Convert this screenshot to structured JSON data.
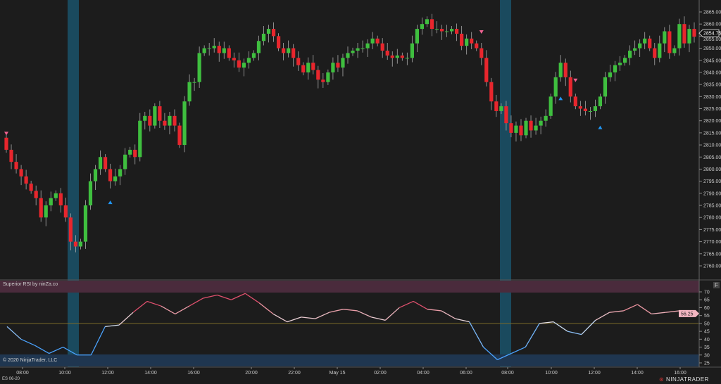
{
  "instrument": "ES 06-20",
  "indicator_label": "Superior RSI by ninZa.co",
  "copyright": "© 2020 NinjaTrader, LLC",
  "logo": "NINJATRADER",
  "panel_button": "F",
  "colors": {
    "background": "#1c1c1c",
    "up": "#3fbf3f",
    "down": "#e8262d",
    "highlight": "#1a4a5e",
    "overbought": "#4a2b3c",
    "oversold": "#1f3650",
    "midline": "#7a6a2a",
    "arrow_up": "#2196f3",
    "arrow_down": "#f06292"
  },
  "chart_data": [
    {
      "type": "candlestick",
      "ylim": [
        2757,
        2868
      ],
      "y_ticks": [
        2865,
        2860,
        2855,
        2850,
        2845,
        2840,
        2835,
        2830,
        2825,
        2820,
        2815,
        2810,
        2805,
        2800,
        2795,
        2790,
        2785,
        2780,
        2775,
        2770,
        2765,
        2760
      ],
      "last_price": "2854.75",
      "x_ticks": [
        "08:00",
        "10:00",
        "12:00",
        "14:00",
        "16:00",
        "20:00",
        "22:00",
        "May 15",
        "02:00",
        "04:00",
        "06:00",
        "08:00",
        "10:00",
        "12:00",
        "14:00",
        "16:00"
      ],
      "closes": [
        2808,
        2803,
        2800,
        2797,
        2794,
        2791,
        2788,
        2780,
        2785,
        2788,
        2790,
        2785,
        2780,
        2770,
        2768,
        2770,
        2785,
        2795,
        2800,
        2805,
        2800,
        2795,
        2797,
        2800,
        2806,
        2808,
        2805,
        2820,
        2822,
        2818,
        2826,
        2820,
        2818,
        2822,
        2818,
        2810,
        2828,
        2836,
        2836,
        2848,
        2850,
        2850,
        2851,
        2848,
        2850,
        2846,
        2845,
        2842,
        2844,
        2846,
        2848,
        2853,
        2856,
        2858,
        2855,
        2850,
        2848,
        2850,
        2846,
        2843,
        2840,
        2844,
        2841,
        2837,
        2836,
        2840,
        2844,
        2842,
        2846,
        2848,
        2849,
        2850,
        2850,
        2852,
        2854,
        2852,
        2849,
        2847,
        2846,
        2847,
        2846,
        2846,
        2852,
        2858,
        2860,
        2862,
        2858,
        2858,
        2857,
        2857,
        2858,
        2856,
        2851,
        2854,
        2852,
        2850,
        2846,
        2836,
        2828,
        2824,
        2826,
        2819,
        2815,
        2818,
        2814,
        2820,
        2816,
        2818,
        2820,
        2822,
        2830,
        2838,
        2844,
        2838,
        2830,
        2826,
        2825,
        2824,
        2824,
        2826,
        2830,
        2838,
        2840,
        2843,
        2844,
        2846,
        2849,
        2850,
        2852,
        2854,
        2850,
        2846,
        2852,
        2857,
        2848,
        2850,
        2860,
        2852,
        2858,
        2854.75
      ],
      "first_open": 2813,
      "highlight_bands": [
        "10:00",
        "08:00"
      ],
      "signals": [
        {
          "type": "sell",
          "index": 0
        },
        {
          "type": "buy",
          "index": 21
        },
        {
          "type": "sell",
          "index": 96
        },
        {
          "type": "buy",
          "index": 112
        },
        {
          "type": "sell",
          "index": 115
        },
        {
          "type": "buy",
          "index": 120
        }
      ]
    },
    {
      "type": "line",
      "title": "Superior RSI by ninZa.co",
      "ylim": [
        23,
        75
      ],
      "y_ticks": [
        70,
        65,
        60,
        55,
        50,
        45,
        40,
        35,
        30,
        25
      ],
      "levels": {
        "overbought": 70,
        "middle": 50,
        "oversold": 30
      },
      "last_value": "56.25",
      "values": [
        48,
        40,
        36,
        31,
        35,
        30,
        30,
        48,
        49,
        57,
        64,
        61,
        56,
        61,
        66,
        68,
        65,
        69,
        63,
        56,
        51,
        54,
        53,
        57,
        59,
        58,
        54,
        52,
        60,
        64,
        59,
        58,
        53,
        51,
        35,
        27,
        31,
        35,
        50,
        51,
        45,
        43,
        52,
        57,
        58,
        62,
        56,
        57,
        58,
        56.25
      ]
    }
  ]
}
